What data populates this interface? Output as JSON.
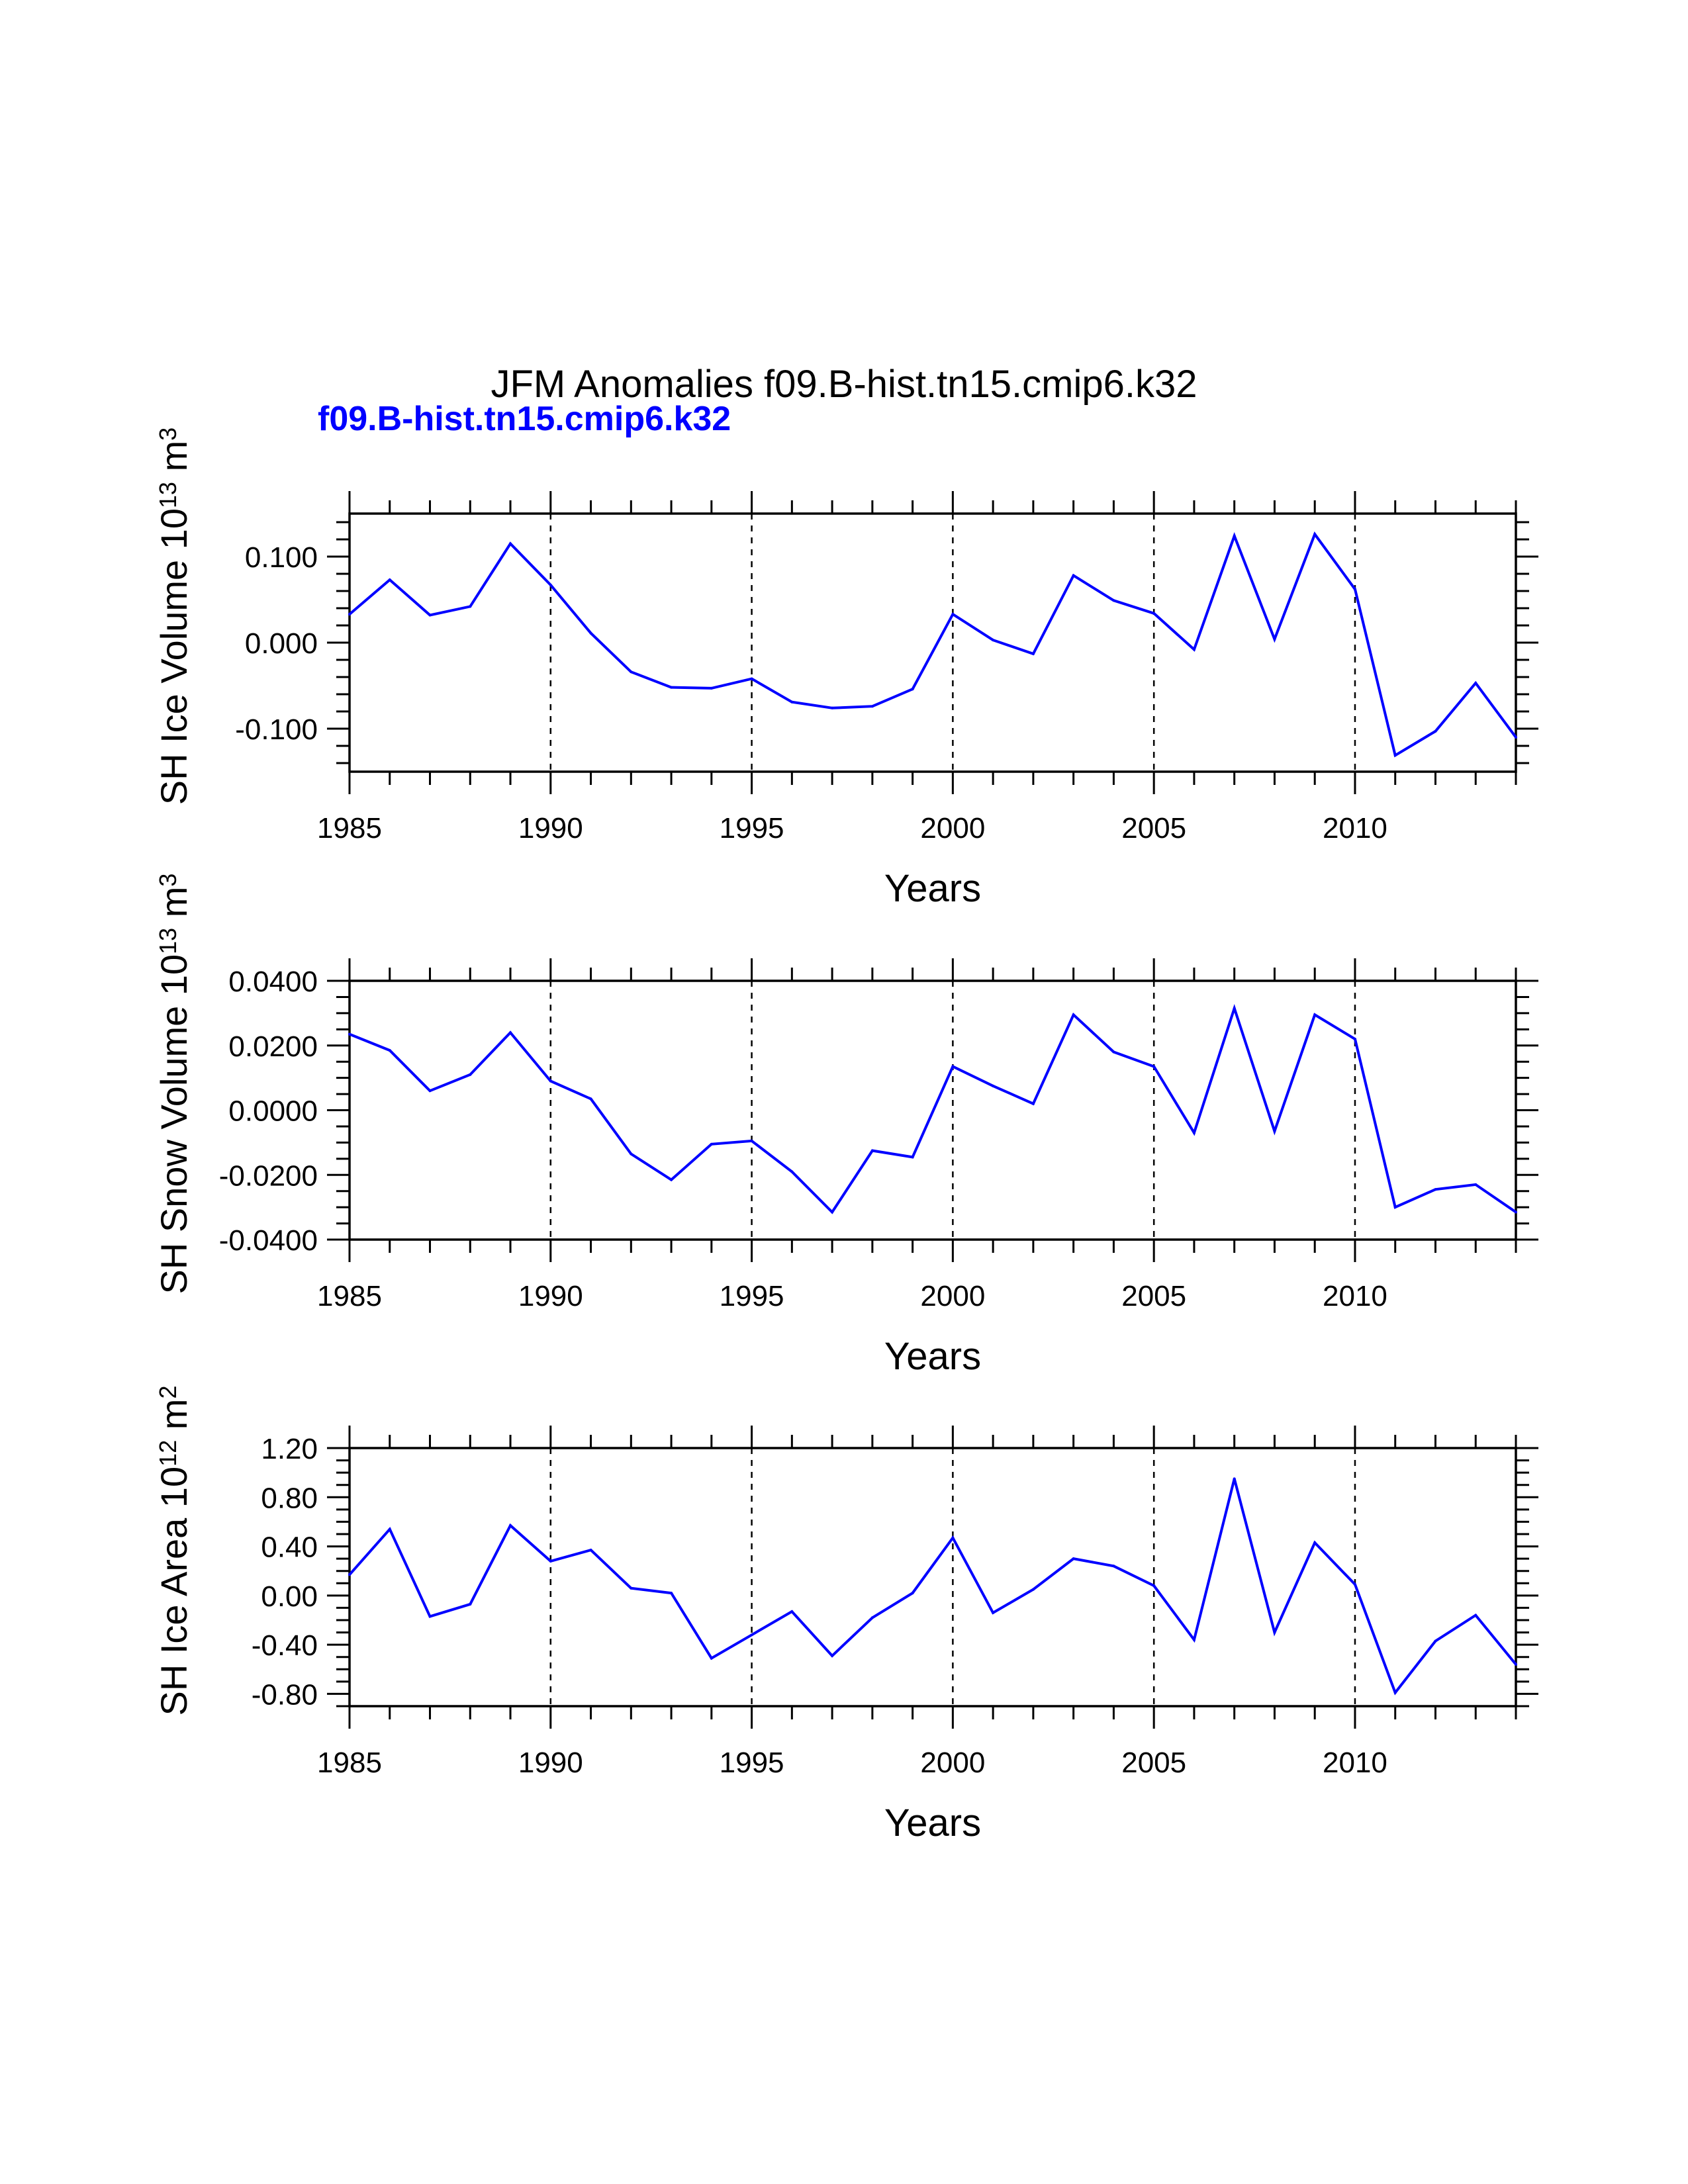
{
  "title": "JFM Anomalies f09.B-hist.tn15.cmip6.k32",
  "subtitle": "f09.B-hist.tn15.cmip6.k32",
  "colors": {
    "series": "#0000ff",
    "axes": "#000000",
    "background": "#ffffff"
  },
  "chart_data": [
    {
      "type": "line",
      "ylabel": {
        "main": "SH Ice Volume 10",
        "sup": "13",
        "unit": " m",
        "unit_sup": "3"
      },
      "xlabel": "Years",
      "xlim": [
        1985,
        2014
      ],
      "ylim": [
        -0.15,
        0.15
      ],
      "yticks": [
        {
          "v": 0.1,
          "label": "0.100"
        },
        {
          "v": 0.0,
          "label": "0.000"
        },
        {
          "v": -0.1,
          "label": "-0.100"
        }
      ],
      "ymajor_step": 0.1,
      "yminor_step": 0.02,
      "xticks": [
        1985,
        1990,
        1995,
        2000,
        2005,
        2010
      ],
      "xticklabels": [
        "1985",
        "1990",
        "1995",
        "2000",
        "2005",
        "2010"
      ],
      "grid_x": [
        1990,
        1995,
        2000,
        2005,
        2010
      ],
      "series": [
        {
          "name": "f09.B-hist.tn15.cmip6.k32",
          "x": [
            1985,
            1986,
            1987,
            1988,
            1989,
            1990,
            1991,
            1992,
            1993,
            1994,
            1995,
            1996,
            1997,
            1998,
            1999,
            2000,
            2001,
            2002,
            2003,
            2004,
            2005,
            2006,
            2007,
            2008,
            2009,
            2010,
            2011,
            2012,
            2013,
            2014
          ],
          "values": [
            0.033,
            0.073,
            0.032,
            0.042,
            0.115,
            0.067,
            0.011,
            -0.034,
            -0.052,
            -0.053,
            -0.042,
            -0.069,
            -0.076,
            -0.074,
            -0.054,
            0.033,
            0.003,
            -0.013,
            0.078,
            0.049,
            0.034,
            -0.008,
            0.124,
            0.004,
            0.126,
            0.062,
            -0.131,
            -0.103,
            -0.047,
            -0.11
          ]
        }
      ]
    },
    {
      "type": "line",
      "ylabel": {
        "main": "SH Snow Volume 10",
        "sup": "13",
        "unit": " m",
        "unit_sup": "3"
      },
      "xlabel": "Years",
      "xlim": [
        1985,
        2014
      ],
      "ylim": [
        -0.04,
        0.04
      ],
      "yticks": [
        {
          "v": 0.04,
          "label": "0.0400"
        },
        {
          "v": 0.02,
          "label": "0.0200"
        },
        {
          "v": 0.0,
          "label": "0.0000"
        },
        {
          "v": -0.02,
          "label": "-0.0200"
        },
        {
          "v": -0.04,
          "label": "-0.0400"
        }
      ],
      "ymajor_step": 0.02,
      "yminor_step": 0.005,
      "xticks": [
        1985,
        1990,
        1995,
        2000,
        2005,
        2010
      ],
      "xticklabels": [
        "1985",
        "1990",
        "1995",
        "2000",
        "2005",
        "2010"
      ],
      "grid_x": [
        1990,
        1995,
        2000,
        2005,
        2010
      ],
      "series": [
        {
          "name": "f09.B-hist.tn15.cmip6.k32",
          "x": [
            1985,
            1986,
            1987,
            1988,
            1989,
            1990,
            1991,
            1992,
            1993,
            1994,
            1995,
            1996,
            1997,
            1998,
            1999,
            2000,
            2001,
            2002,
            2003,
            2004,
            2005,
            2006,
            2007,
            2008,
            2009,
            2010,
            2011,
            2012,
            2013,
            2014
          ],
          "values": [
            0.0235,
            0.0185,
            0.006,
            0.011,
            0.024,
            0.009,
            0.0035,
            -0.0135,
            -0.0215,
            -0.0105,
            -0.0095,
            -0.019,
            -0.0315,
            -0.0125,
            -0.0145,
            0.0135,
            0.0075,
            0.002,
            0.0295,
            0.018,
            0.0135,
            -0.007,
            0.0315,
            -0.0065,
            0.0295,
            0.022,
            -0.03,
            -0.0245,
            -0.023,
            -0.0315
          ]
        }
      ]
    },
    {
      "type": "line",
      "ylabel": {
        "main": "SH Ice Area 10",
        "sup": "12",
        "unit": " m",
        "unit_sup": "2"
      },
      "xlabel": "Years",
      "xlim": [
        1985,
        2014
      ],
      "ylim": [
        -0.9,
        1.2
      ],
      "yticks": [
        {
          "v": 1.2,
          "label": "1.20"
        },
        {
          "v": 0.8,
          "label": "0.80"
        },
        {
          "v": 0.4,
          "label": "0.40"
        },
        {
          "v": 0.0,
          "label": "0.00"
        },
        {
          "v": -0.4,
          "label": "-0.40"
        },
        {
          "v": -0.8,
          "label": "-0.80"
        }
      ],
      "ymajor_step": 0.4,
      "yminor_step": 0.1,
      "xticks": [
        1985,
        1990,
        1995,
        2000,
        2005,
        2010
      ],
      "xticklabels": [
        "1985",
        "1990",
        "1995",
        "2000",
        "2005",
        "2010"
      ],
      "grid_x": [
        1990,
        1995,
        2000,
        2005,
        2010
      ],
      "series": [
        {
          "name": "f09.B-hist.tn15.cmip6.k32",
          "x": [
            1985,
            1986,
            1987,
            1988,
            1989,
            1990,
            1991,
            1992,
            1993,
            1994,
            1995,
            1996,
            1997,
            1998,
            1999,
            2000,
            2001,
            2002,
            2003,
            2004,
            2005,
            2006,
            2007,
            2008,
            2009,
            2010,
            2011,
            2012,
            2013,
            2014
          ],
          "values": [
            0.17,
            0.54,
            -0.17,
            -0.07,
            0.57,
            0.28,
            0.37,
            0.06,
            0.02,
            -0.51,
            -0.32,
            -0.13,
            -0.49,
            -0.18,
            0.02,
            0.47,
            -0.14,
            0.05,
            0.3,
            0.24,
            0.08,
            -0.36,
            0.95,
            -0.3,
            0.43,
            0.09,
            -0.79,
            -0.37,
            -0.16,
            -0.56
          ]
        }
      ]
    }
  ]
}
